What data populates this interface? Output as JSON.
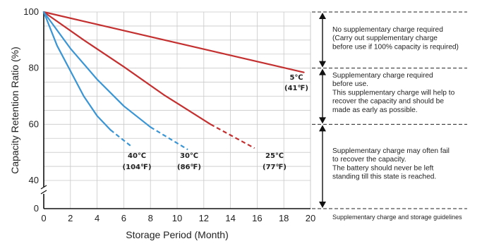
{
  "chart_data": {
    "type": "line",
    "title": "",
    "xlabel": "Storage Period (Month)",
    "ylabel": "Capacity Retention Ratio (%)",
    "xlim": [
      0,
      20
    ],
    "ylim": [
      40,
      100
    ],
    "x_ticks": [
      "0",
      "2",
      "4",
      "6",
      "8",
      "10",
      "12",
      "14",
      "16",
      "18",
      "20"
    ],
    "y_ticks": [
      {
        "value": 100,
        "label": "100"
      },
      {
        "value": 80,
        "label": "80"
      },
      {
        "value": 60,
        "label": "60"
      },
      {
        "value": 40,
        "label": "40"
      }
    ],
    "y_zero_label": "0",
    "axis_break": true,
    "grid": true,
    "series": [
      {
        "id": "s5",
        "label_line1": "5℃",
        "label_line2": "(41℉)",
        "color": "#c43030",
        "solid": [
          [
            0,
            100
          ],
          [
            19.5,
            78.5
          ]
        ],
        "dashed": []
      },
      {
        "id": "s25",
        "label_line1": "25℃",
        "label_line2": "(77℉)",
        "color": "#c43030",
        "solid": [
          [
            0,
            100
          ],
          [
            3,
            90
          ],
          [
            6,
            80.5
          ],
          [
            9,
            70.5
          ],
          [
            12.5,
            60
          ]
        ],
        "dashed": [
          [
            12.5,
            60
          ],
          [
            15.8,
            51.5
          ]
        ]
      },
      {
        "id": "s30",
        "label_line1": "30℃",
        "label_line2": "(86℉)",
        "color": "#3a95d5",
        "solid": [
          [
            0,
            100
          ],
          [
            2,
            87
          ],
          [
            4,
            76
          ],
          [
            6,
            66.5
          ],
          [
            8,
            59
          ]
        ],
        "dashed": [
          [
            8,
            59
          ],
          [
            10.8,
            51
          ]
        ]
      },
      {
        "id": "s40",
        "label_line1": "40℃",
        "label_line2": "(104℉)",
        "color": "#3a95d5",
        "solid": [
          [
            0,
            100
          ],
          [
            1,
            88
          ],
          [
            2,
            79
          ],
          [
            3,
            70
          ],
          [
            4,
            63
          ],
          [
            5,
            58
          ]
        ],
        "dashed": [
          [
            5,
            58
          ],
          [
            6.6,
            52
          ]
        ]
      }
    ]
  },
  "guidelines": {
    "zones": [
      {
        "id": "zone-1",
        "y_range": [
          80,
          100
        ],
        "lines": [
          "No supplementary charge required",
          "(Carry out supplementary charge",
          "before use if 100% capacity is required)"
        ]
      },
      {
        "id": "zone-2",
        "y_range": [
          60,
          80
        ],
        "lines": [
          "Supplementary charge required",
          "before use.",
          "This supplementary charge will help to",
          "recover  the capacity and should be",
          "made as early as possible."
        ]
      },
      {
        "id": "zone-3",
        "y_range": [
          0,
          60
        ],
        "lines": [
          "Supplementary charge may often fail",
          "to recover the capacity.",
          "The battery should never be left",
          "standing till this state is reached."
        ]
      }
    ],
    "caption": "Supplementary charge and storage guidelines"
  }
}
